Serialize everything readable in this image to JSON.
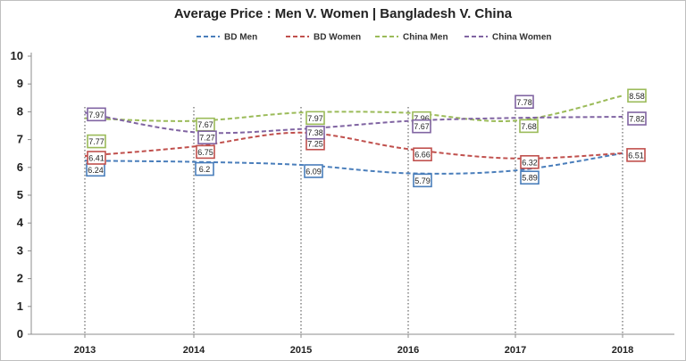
{
  "chart_data": {
    "type": "line",
    "title": "Average Price : Men V. Women | Bangladesh V. China",
    "xlabel": "",
    "ylabel": "",
    "categories": [
      "2013",
      "2014",
      "2015",
      "2016",
      "2017",
      "2018"
    ],
    "ylim": [
      0,
      10
    ],
    "yticks": [
      "0",
      "1",
      "2",
      "3",
      "4",
      "5",
      "6",
      "7",
      "8",
      "9",
      "10"
    ],
    "grid": false,
    "legend_position": "top",
    "series": [
      {
        "name": "BD Men",
        "color": "#4a7ebb",
        "values": [
          6.24,
          6.2,
          6.09,
          5.79,
          5.89,
          6.51
        ],
        "labels": [
          "6.24",
          "6.2",
          "6.09",
          "5.79",
          "5.89",
          ""
        ]
      },
      {
        "name": "BD Women",
        "color": "#c0504d",
        "values": [
          6.41,
          6.75,
          7.25,
          6.66,
          6.32,
          6.51
        ],
        "labels": [
          "6.41",
          "6.75",
          "7.25",
          "6.66",
          "6.32",
          "6.51"
        ]
      },
      {
        "name": "China Men",
        "color": "#9bbb59",
        "values": [
          7.77,
          7.67,
          7.97,
          7.96,
          7.68,
          8.58
        ],
        "labels": [
          "7.77",
          "7.67",
          "7.97",
          "7.96",
          "7.68",
          "8.58"
        ]
      },
      {
        "name": "China Women",
        "color": "#8064a2",
        "values": [
          7.97,
          7.27,
          7.38,
          7.67,
          7.78,
          7.82
        ],
        "labels": [
          "7.97",
          "7.27",
          "7.38",
          "7.67",
          "7.78",
          "7.82"
        ]
      }
    ]
  }
}
